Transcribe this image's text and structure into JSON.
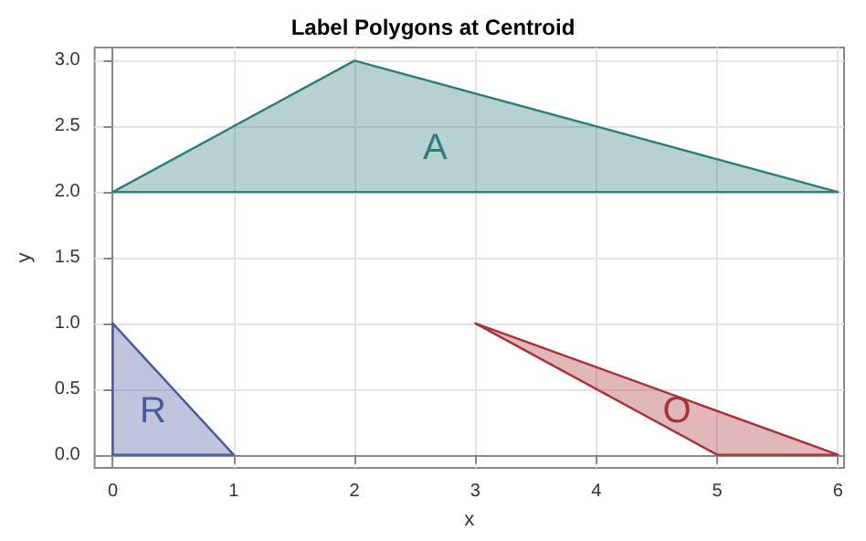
{
  "chart_data": {
    "type": "area",
    "title": "Label Polygons at Centroid",
    "xlabel": "x",
    "ylabel": "y",
    "series": [
      {
        "name": "A",
        "color": "#2e7d78",
        "x": [
          0,
          2,
          6
        ],
        "values": [
          2,
          3,
          2
        ]
      },
      {
        "name": "R",
        "color": "#4a5a9e",
        "x": [
          0,
          0,
          1
        ],
        "values": [
          0,
          1,
          0
        ]
      },
      {
        "name": "O",
        "color": "#a8323a",
        "x": [
          3,
          6,
          5
        ],
        "values": [
          1,
          0,
          0
        ]
      }
    ],
    "xlim": [
      -0.15,
      6.05
    ],
    "xticks": [
      0,
      1,
      2,
      3,
      4,
      5,
      6
    ],
    "ylim": [
      -0.1,
      3.1
    ],
    "yticks": [
      {
        "value": 0,
        "label": "0.0"
      },
      {
        "value": 0.5,
        "label": "0.5"
      },
      {
        "value": 1,
        "label": "1.0"
      },
      {
        "value": 1.5,
        "label": "1.5"
      },
      {
        "value": 2,
        "label": "2.0"
      },
      {
        "value": 2.5,
        "label": "2.5"
      },
      {
        "value": 3,
        "label": "3.0"
      }
    ],
    "grid": true,
    "legend": false
  }
}
